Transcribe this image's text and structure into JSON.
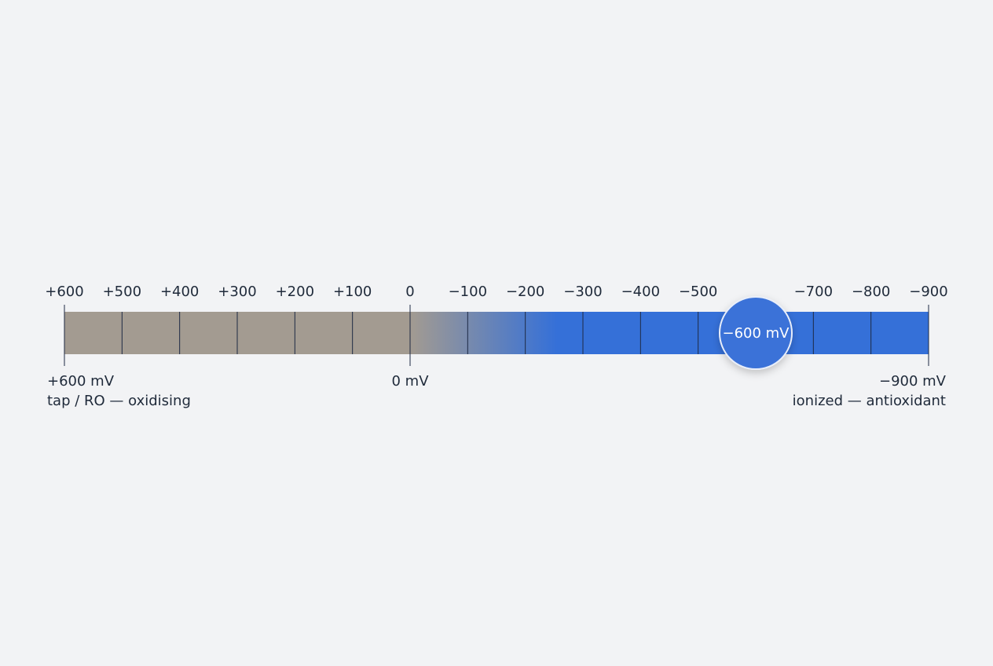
{
  "chart_data": {
    "type": "scale",
    "xlim": [
      600,
      -900
    ],
    "xticks": [
      {
        "value": 600,
        "label": "+600"
      },
      {
        "value": 500,
        "label": "+500"
      },
      {
        "value": 400,
        "label": "+400"
      },
      {
        "value": 300,
        "label": "+300"
      },
      {
        "value": 200,
        "label": "+200"
      },
      {
        "value": 100,
        "label": "+100"
      },
      0,
      {
        "value": -100,
        "label": "−100"
      },
      {
        "value": -200,
        "label": "−200"
      },
      {
        "value": -300,
        "label": "−300"
      },
      {
        "value": -400,
        "label": "−400"
      },
      {
        "value": -500,
        "label": "−500"
      },
      {
        "value": -700,
        "label": "−700"
      },
      {
        "value": -800,
        "label": "−800"
      },
      {
        "value": -900,
        "label": "−900"
      }
    ],
    "annotations": [
      {
        "value": 600,
        "label": "+600 mV",
        "note": "tap / RO — oxidising"
      },
      {
        "value": 0,
        "label": "0 mV"
      },
      {
        "value": -900,
        "label": "−900 mV",
        "note": "ionized — antioxidant"
      }
    ],
    "values": [
      -600
    ],
    "value_labels": [
      "−600 mV"
    ],
    "colors": [
      "#a39b91",
      "#3570d8"
    ],
    "marker_color": "#3a72d8"
  }
}
